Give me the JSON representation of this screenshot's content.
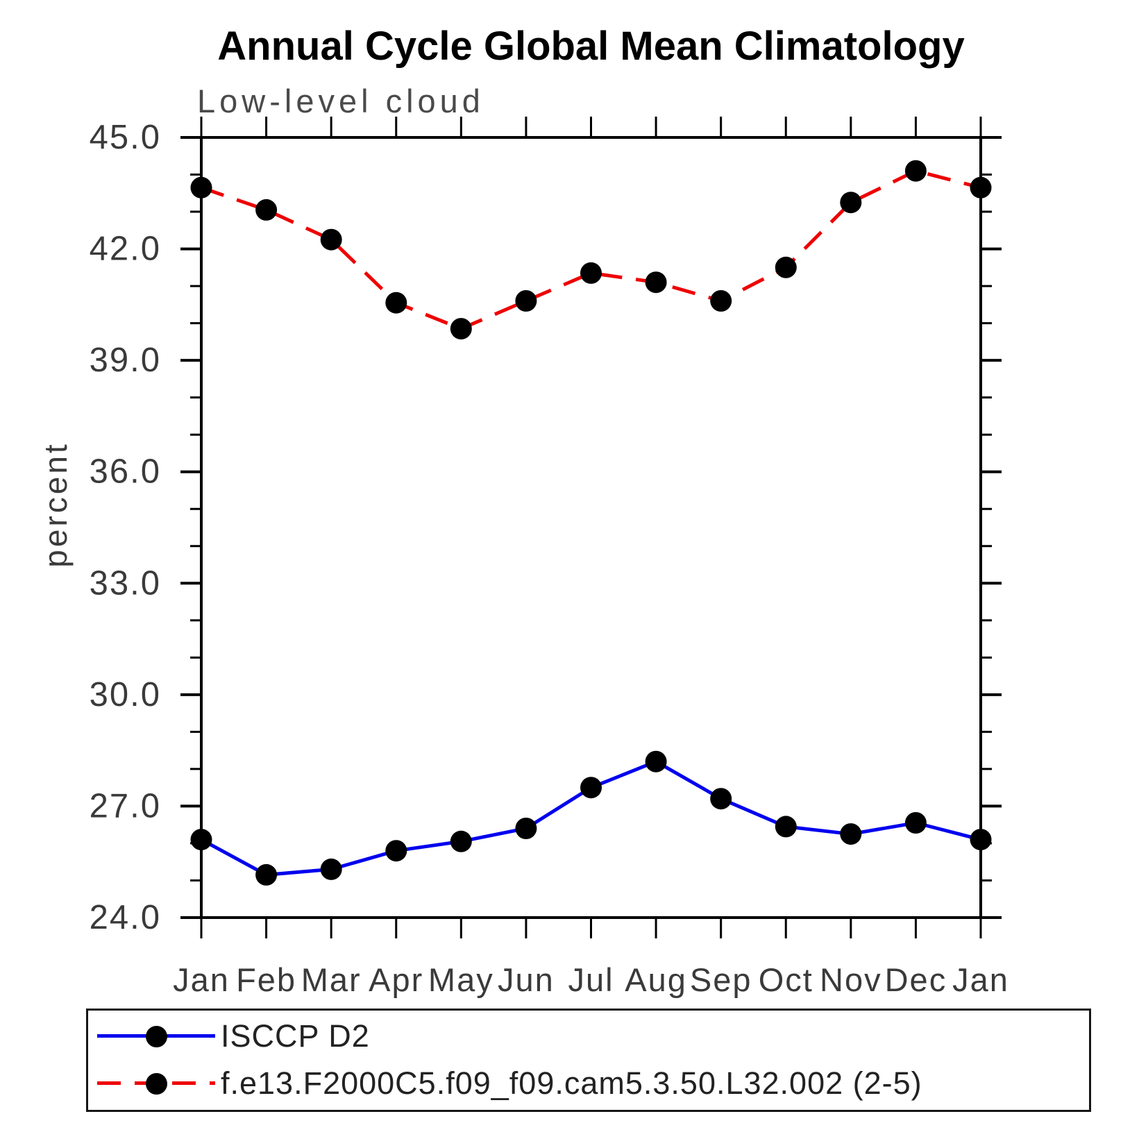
{
  "header": {
    "title": "Annual Cycle Global Mean Climatology",
    "subtitle": "Low-level cloud"
  },
  "y_axis": {
    "label": "percent",
    "tick_labels": [
      "45.0",
      "42.0",
      "39.0",
      "36.0",
      "33.0",
      "30.0",
      "27.0",
      "24.0"
    ]
  },
  "x_axis": {
    "tick_labels": [
      "Jan",
      "Feb",
      "Mar",
      "Apr",
      "May",
      "Jun",
      "Jul",
      "Aug",
      "Sep",
      "Oct",
      "Nov",
      "Dec",
      "Jan"
    ]
  },
  "legend": {
    "entries": [
      {
        "label": "ISCCP D2",
        "color": "#0000ee",
        "line_style": "solid",
        "marker_color": "#000000"
      },
      {
        "label": "f.e13.F2000C5.f09_f09.cam5.3.50.L32.002 (2-5)",
        "color": "#ee0000",
        "line_style": "dashed",
        "marker_color": "#000000"
      }
    ]
  },
  "chart_data": {
    "type": "line",
    "title": "Annual Cycle Global Mean Climatology",
    "subtitle": "Low-level cloud",
    "xlabel": "",
    "ylabel": "percent",
    "ylim": [
      24.0,
      45.0
    ],
    "y_major_ticks": [
      24,
      27,
      30,
      33,
      36,
      39,
      42,
      45
    ],
    "y_minor_step": 1,
    "grid": false,
    "legend_position": "bottom",
    "categories": [
      "Jan",
      "Feb",
      "Mar",
      "Apr",
      "May",
      "Jun",
      "Jul",
      "Aug",
      "Sep",
      "Oct",
      "Nov",
      "Dec",
      "Jan"
    ],
    "series": [
      {
        "name": "ISCCP D2",
        "color": "#0000ee",
        "line_style": "solid",
        "marker": "filled-circle",
        "marker_color": "#000000",
        "values": [
          26.1,
          25.15,
          25.3,
          25.8,
          26.05,
          26.4,
          27.5,
          28.2,
          27.2,
          26.45,
          26.25,
          26.55,
          26.1
        ]
      },
      {
        "name": "f.e13.F2000C5.f09_f09.cam5.3.50.L32.002 (2-5)",
        "color": "#ee0000",
        "line_style": "dashed",
        "marker": "filled-circle",
        "marker_color": "#000000",
        "values": [
          43.65,
          43.05,
          42.25,
          40.55,
          39.85,
          40.6,
          41.35,
          41.1,
          40.6,
          41.5,
          43.25,
          44.1,
          43.65
        ]
      }
    ]
  }
}
